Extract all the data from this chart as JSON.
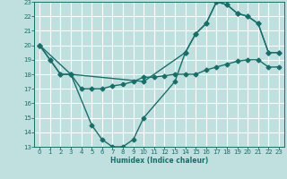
{
  "xlabel": "Humidex (Indice chaleur)",
  "bg_color": "#c0e0e0",
  "grid_color": "#ffffff",
  "line_color": "#1a6e6a",
  "xlim": [
    -0.5,
    23.5
  ],
  "ylim": [
    13,
    23
  ],
  "xticks": [
    0,
    1,
    2,
    3,
    4,
    5,
    6,
    7,
    8,
    9,
    10,
    11,
    12,
    13,
    14,
    15,
    16,
    17,
    18,
    19,
    20,
    21,
    22,
    23
  ],
  "yticks": [
    13,
    14,
    15,
    16,
    17,
    18,
    19,
    20,
    21,
    22,
    23
  ],
  "line1_x": [
    0,
    1,
    2,
    3,
    4,
    5,
    6,
    7,
    8,
    9,
    10,
    11,
    12,
    13,
    14,
    15,
    16,
    17,
    18,
    19,
    20,
    21,
    22,
    23
  ],
  "line1_y": [
    20,
    19,
    18,
    18,
    17,
    17,
    17,
    17.2,
    17.3,
    17.5,
    17.8,
    17.8,
    17.9,
    18,
    18,
    18,
    18.3,
    18.5,
    18.7,
    18.9,
    19,
    19,
    18.5,
    18.5
  ],
  "line2_x": [
    0,
    1,
    2,
    3,
    5,
    6,
    7,
    8,
    9,
    10,
    13,
    14,
    15,
    16,
    17,
    18,
    19,
    20,
    21,
    22,
    23
  ],
  "line2_y": [
    20,
    19,
    18,
    18,
    14.5,
    13.5,
    13,
    13,
    13.5,
    15,
    17.5,
    19.5,
    20.8,
    21.5,
    23,
    22.8,
    22.2,
    22,
    21.5,
    19.5,
    19.5
  ],
  "line3_x": [
    0,
    3,
    10,
    14,
    15,
    16,
    17,
    18,
    19,
    20,
    21,
    22,
    23
  ],
  "line3_y": [
    20,
    18,
    17.5,
    19.5,
    20.8,
    21.5,
    23,
    22.8,
    22.2,
    22,
    21.5,
    19.5,
    19.5
  ]
}
